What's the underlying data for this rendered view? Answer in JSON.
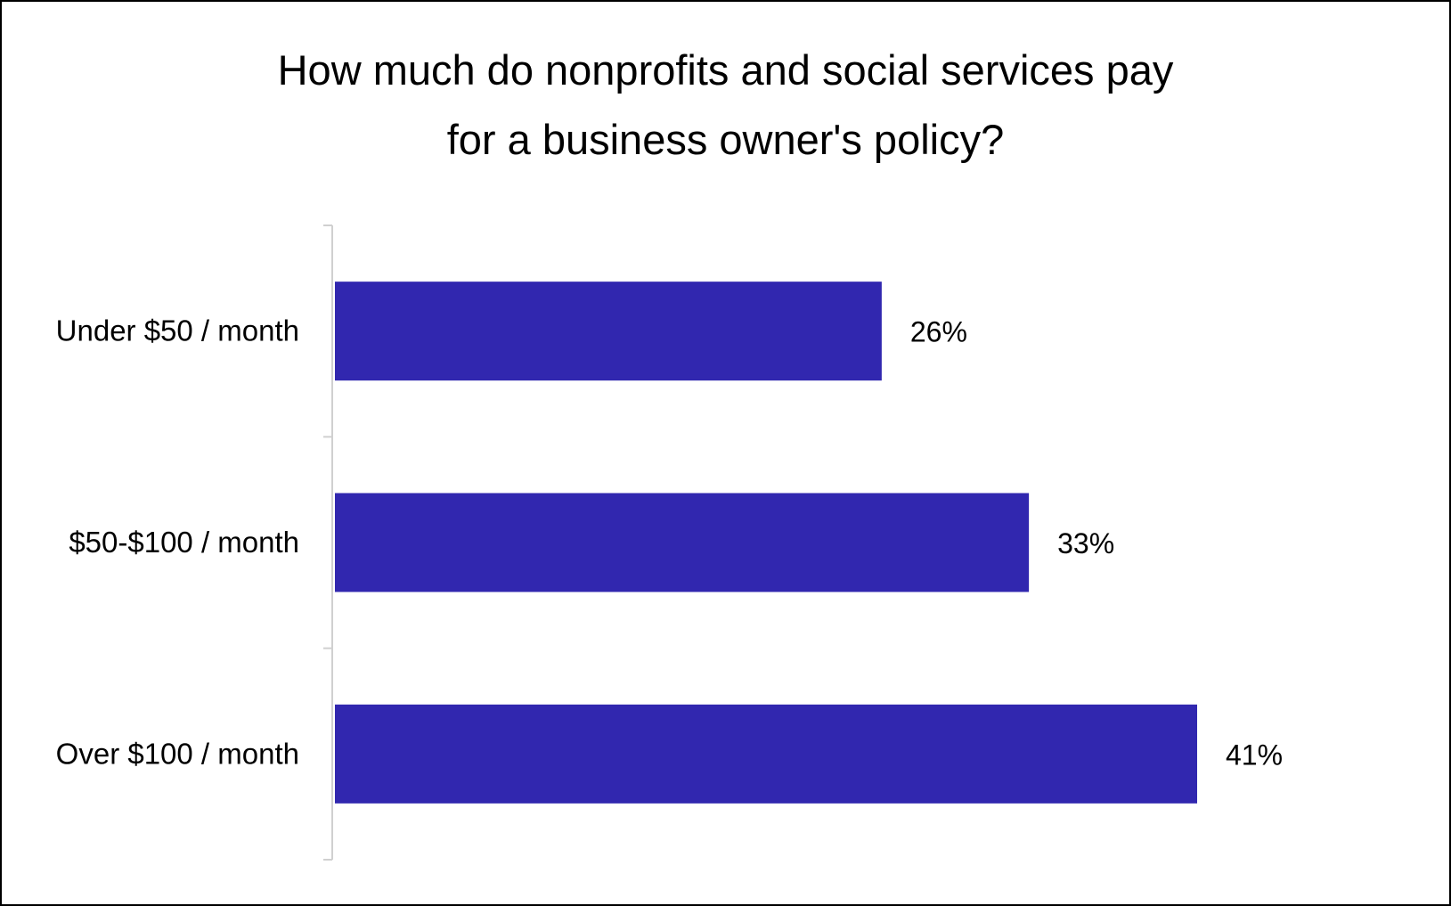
{
  "chart_data": {
    "type": "bar",
    "orientation": "horizontal",
    "title": "How much do nonprofits and social services pay for a business owner's policy?",
    "title_lines": [
      "How much do nonprofits and social services pay",
      "for a business owner's policy?"
    ],
    "categories": [
      "Under $50 / month",
      "$50-$100 / month",
      "Over $100 / month"
    ],
    "values": [
      26,
      33,
      41
    ],
    "data_labels": [
      "26%",
      "33%",
      "41%"
    ],
    "xlabel": "",
    "ylabel": "",
    "xlim": [
      0,
      45
    ],
    "grid": false,
    "legend": "none",
    "bar_color": "#3127AF"
  }
}
